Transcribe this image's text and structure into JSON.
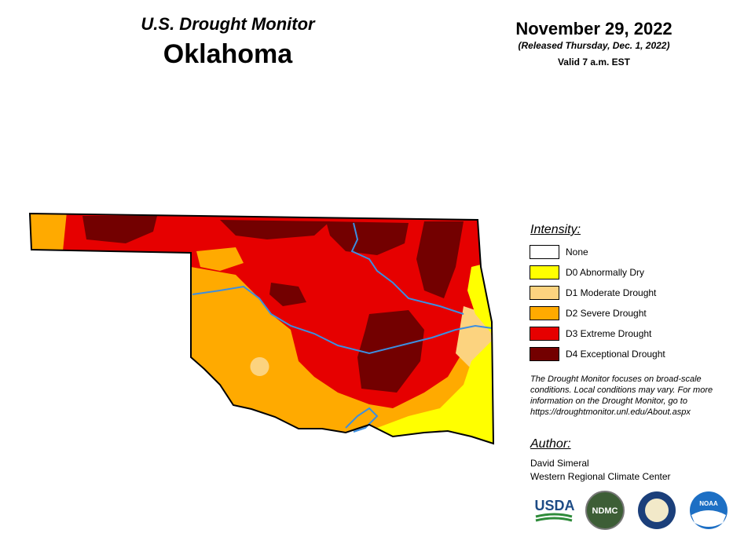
{
  "header": {
    "title": "U.S. Drought Monitor",
    "state": "Oklahoma"
  },
  "date": {
    "date": "November 29, 2022",
    "released": "(Released Thursday, Dec. 1, 2022)",
    "valid": "Valid 7 a.m. EST"
  },
  "legend": {
    "heading": "Intensity:",
    "items": [
      {
        "label": "None",
        "color": "#ffffff"
      },
      {
        "label": "D0 Abnormally Dry",
        "color": "#ffff00"
      },
      {
        "label": "D1 Moderate Drought",
        "color": "#fcd37f"
      },
      {
        "label": "D2 Severe Drought",
        "color": "#ffaa00"
      },
      {
        "label": "D3 Extreme Drought",
        "color": "#e60000"
      },
      {
        "label": "D4 Exceptional Drought",
        "color": "#730000"
      }
    ]
  },
  "note": "The Drought Monitor focuses on broad-scale conditions. Local conditions may vary. For more information on the Drought Monitor, go to https://droughtmonitor.unl.edu/About.aspx",
  "author": {
    "heading": "Author:",
    "name": "David Simeral",
    "org": "Western Regional Climate Center"
  },
  "logos": {
    "usda": "USDA",
    "ndmc": "NDMC",
    "noaa": "NOAA"
  }
}
